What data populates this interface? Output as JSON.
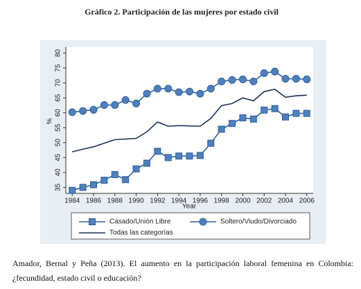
{
  "chart_data": {
    "type": "line",
    "title": "Gráfico 2. Participación de las mujeres por estado civil",
    "x_label": "Year",
    "y_label": "%",
    "x": [
      1984,
      1985,
      1986,
      1987,
      1988,
      1989,
      1990,
      1991,
      1992,
      1993,
      1994,
      1995,
      1996,
      1997,
      1998,
      1999,
      2000,
      2001,
      2002,
      2003,
      2004,
      2005,
      2006
    ],
    "xlim": [
      1983.4,
      2006.6
    ],
    "xticks": [
      1984,
      1986,
      1988,
      1990,
      1992,
      1994,
      1996,
      1998,
      2000,
      2002,
      2004,
      2006
    ],
    "ylim": [
      33,
      82
    ],
    "yticks": [
      35,
      40,
      45,
      50,
      55,
      60,
      65,
      70,
      75,
      80
    ],
    "series": [
      {
        "name": "Casado/Unión Libre",
        "color": "#2d5f9a",
        "marker": "square",
        "values": [
          34.0,
          35.0,
          35.9,
          37.4,
          39.3,
          37.6,
          41.2,
          43.1,
          47.1,
          45.0,
          45.5,
          45.5,
          45.7,
          49.8,
          54.5,
          56.4,
          58.3,
          57.9,
          60.9,
          61.4,
          58.6,
          59.8,
          59.8
        ]
      },
      {
        "name": "Soltero/Viudo/Divorciado",
        "color": "#2d5f9a",
        "marker": "circle",
        "values": [
          60.2,
          60.6,
          61.0,
          62.6,
          62.6,
          64.3,
          63.1,
          66.4,
          68.1,
          68.1,
          66.9,
          67.1,
          66.4,
          68.1,
          70.5,
          71.0,
          71.2,
          70.5,
          73.3,
          73.8,
          71.4,
          71.4,
          71.2
        ]
      },
      {
        "name": "Todas las categorías",
        "color": "#1c2f4f",
        "marker": "none",
        "values": [
          46.9,
          47.8,
          48.6,
          49.8,
          51.0,
          51.2,
          51.4,
          53.6,
          56.9,
          55.5,
          55.7,
          55.6,
          55.5,
          58.1,
          62.4,
          63.1,
          65.0,
          64.0,
          67.1,
          67.9,
          65.2,
          65.7,
          65.9
        ]
      }
    ],
    "source": "Amador, Bernal y Peña (2013). El aumento en la participación laboral femenina en Colombia: ¿fecundidad, estado civil o educación?"
  }
}
